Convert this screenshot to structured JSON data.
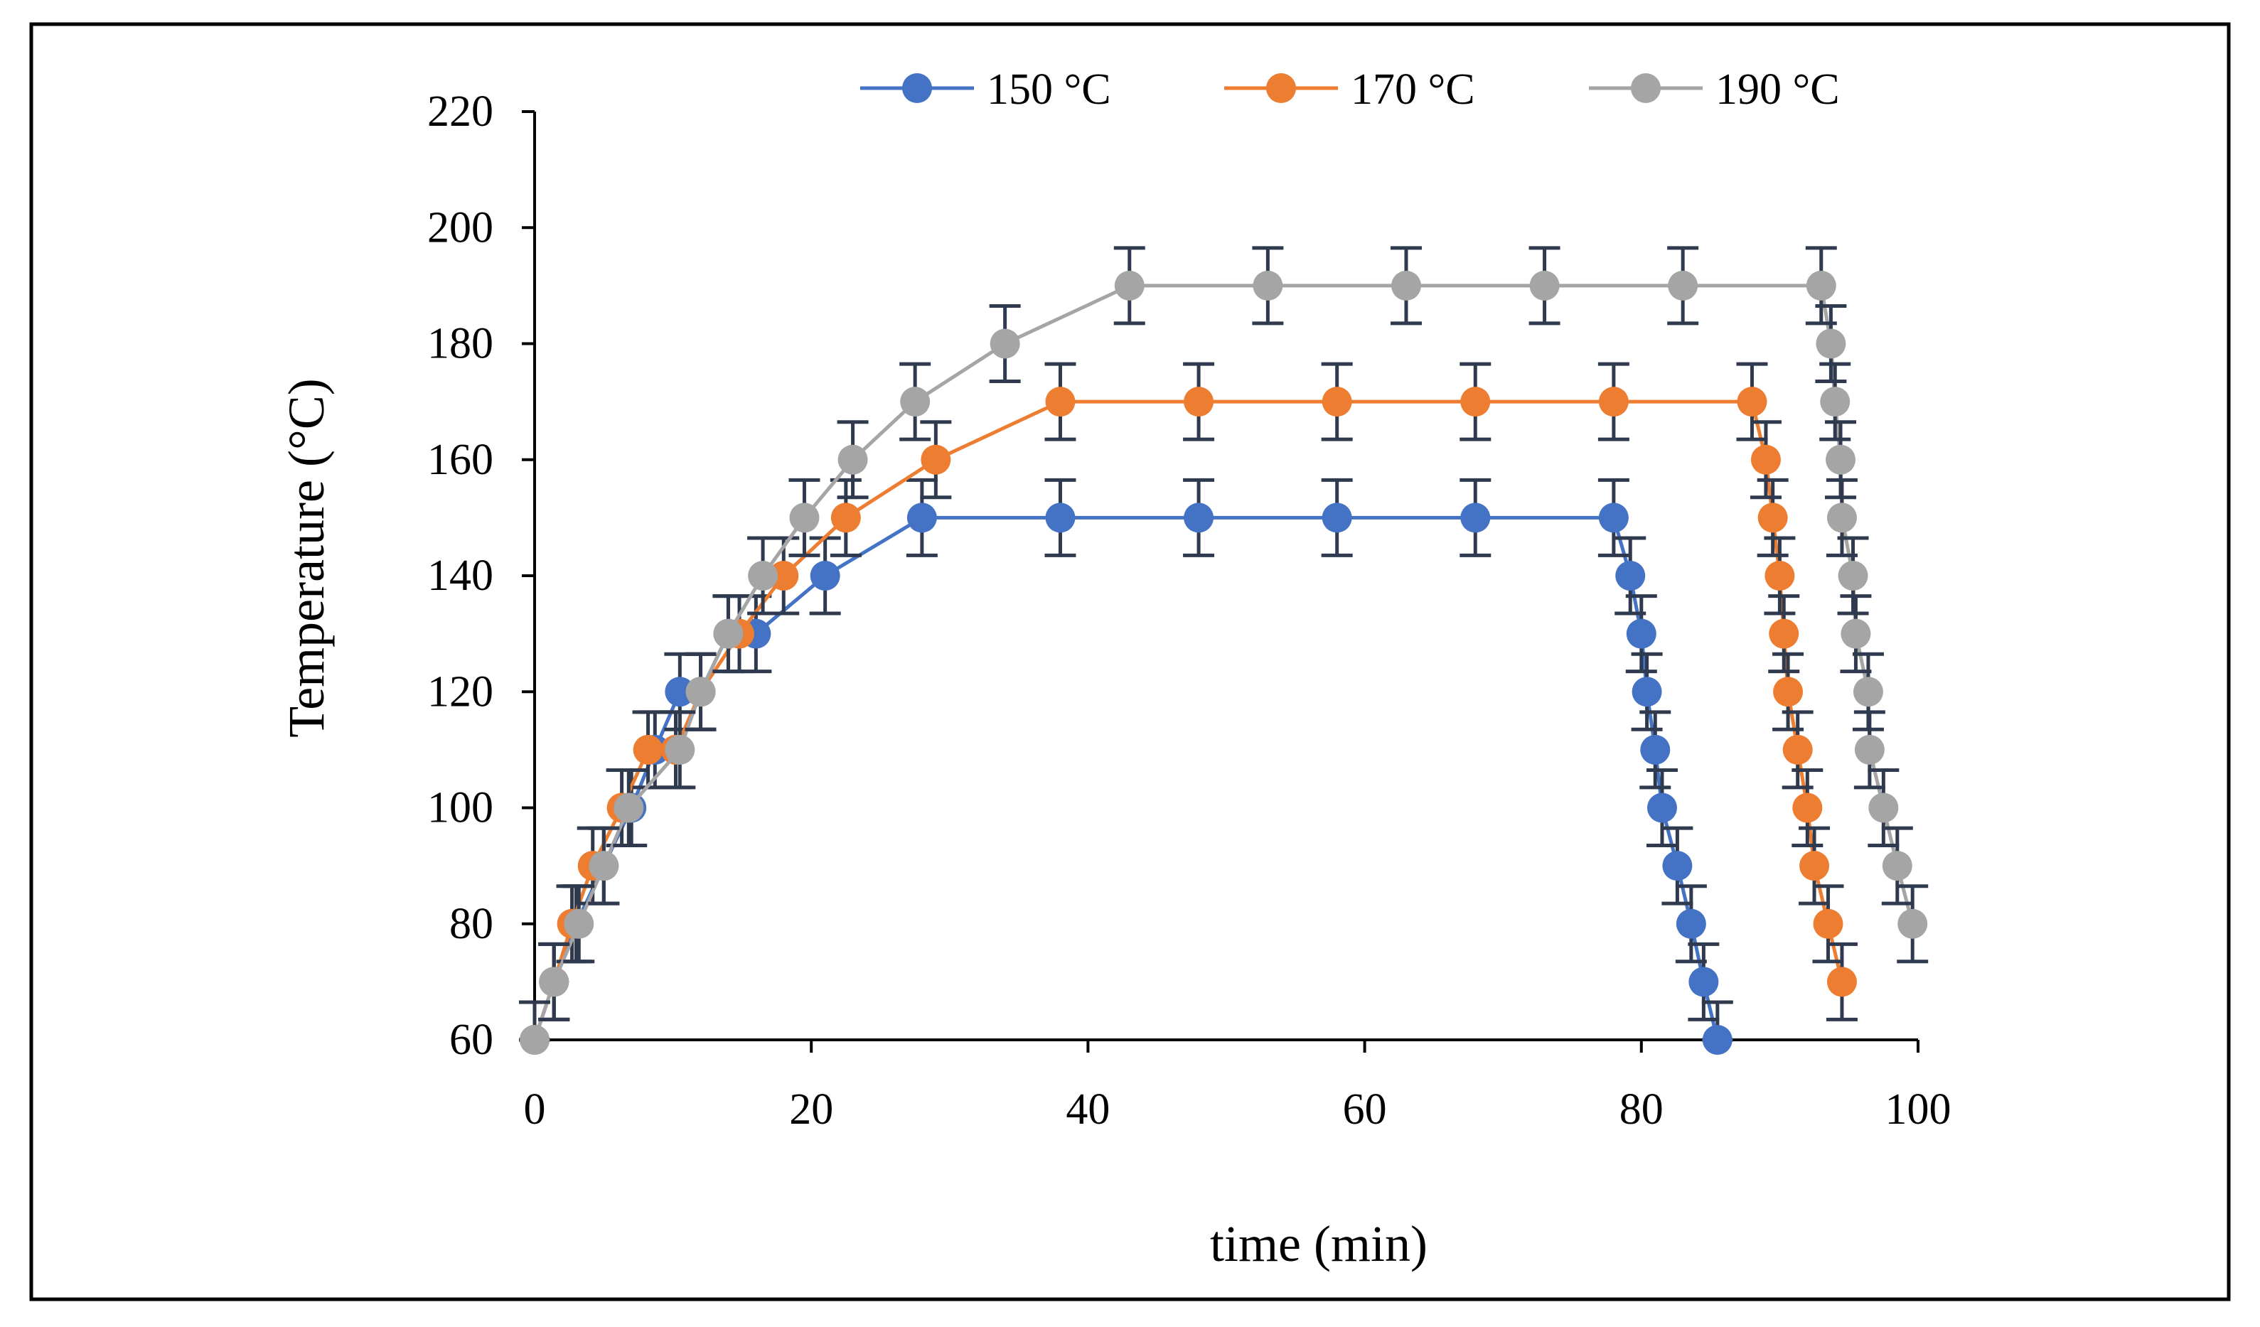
{
  "chart_data": {
    "type": "line",
    "title": "",
    "xlabel": "time (min)",
    "ylabel": "Temperature (°C)",
    "xlim": [
      0,
      100
    ],
    "ylim": [
      60,
      220
    ],
    "xticks": [
      0,
      20,
      40,
      60,
      80,
      100
    ],
    "yticks": [
      60,
      80,
      100,
      120,
      140,
      160,
      180,
      200,
      220
    ],
    "grid": false,
    "legend_position": "top",
    "error_bar": 6.5,
    "series": [
      {
        "name": "150 °C",
        "color": "#4472C4",
        "x": [
          0,
          1.4,
          3,
          5,
          7,
          8.7,
          10.5,
          12,
          14,
          16,
          21,
          28,
          38,
          48,
          58,
          68,
          78,
          79.2,
          80,
          80.4,
          81,
          81.5,
          82.6,
          83.6,
          84.5,
          85.5
        ],
        "y": [
          60,
          70,
          80,
          90,
          100,
          110,
          120,
          120,
          130,
          130,
          140,
          150,
          150,
          150,
          150,
          150,
          150,
          140,
          130,
          120,
          110,
          100,
          90,
          80,
          70,
          60
        ]
      },
      {
        "name": "170 °C",
        "color": "#ED7D31",
        "x": [
          0,
          1.4,
          2.7,
          4.2,
          6.3,
          8.2,
          10.2,
          12,
          14.8,
          18,
          22.5,
          29,
          38,
          48,
          58,
          68,
          78,
          88,
          89,
          89.5,
          90,
          90.3,
          90.6,
          91.3,
          92,
          92.5,
          93.5,
          94.5
        ],
        "y": [
          60,
          70,
          80,
          90,
          100,
          110,
          110,
          120,
          130,
          140,
          150,
          160,
          170,
          170,
          170,
          170,
          170,
          170,
          160,
          150,
          140,
          130,
          120,
          110,
          100,
          90,
          80,
          70
        ]
      },
      {
        "name": "190 °C",
        "color": "#A5A5A5",
        "x": [
          0,
          1.4,
          3.2,
          5,
          6.8,
          10.5,
          12,
          14,
          16.5,
          19.5,
          23,
          27.5,
          34,
          43,
          53,
          63,
          73,
          83,
          93,
          93.7,
          94,
          94.4,
          94.5,
          95.3,
          95.5,
          96.4,
          96.5,
          97.5,
          98.5,
          99.6
        ],
        "y": [
          60,
          70,
          80,
          90,
          100,
          110,
          120,
          130,
          140,
          150,
          160,
          170,
          180,
          190,
          190,
          190,
          190,
          190,
          190,
          180,
          170,
          160,
          150,
          140,
          130,
          120,
          110,
          100,
          90,
          80
        ]
      }
    ]
  }
}
